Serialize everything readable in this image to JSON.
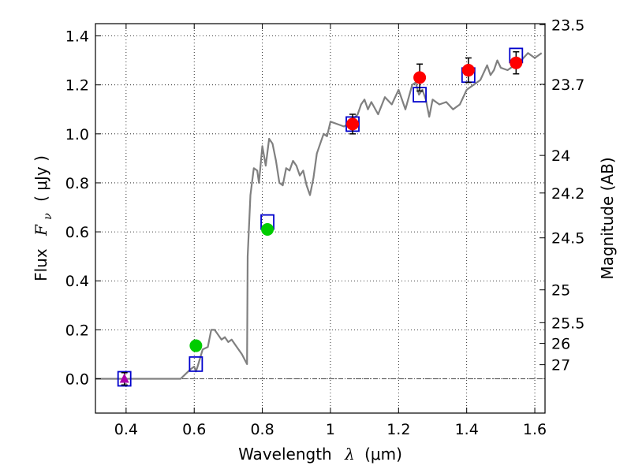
{
  "chart_data": {
    "type": "scatter",
    "xlabel_text": "Wavelength",
    "xlabel_symbol": "λ",
    "xlabel_unit": "(μm)",
    "ylabel_text": "Flux",
    "ylabel_symbol": "F",
    "ylabel_subscript": "ν",
    "ylabel_unit": "( μJy )",
    "y2label": "Magnitude (AB)",
    "xlim": [
      0.31,
      1.63
    ],
    "ylim": [
      -0.14,
      1.45
    ],
    "grid": true,
    "xticks": [
      0.4,
      0.6,
      0.8,
      1.0,
      1.2,
      1.4,
      1.6
    ],
    "xtick_labels": [
      "0.4",
      "0.6",
      "0.8",
      "1",
      "1.2",
      "1.4",
      "1.6"
    ],
    "yticks": [
      0.0,
      0.2,
      0.4,
      0.6,
      0.8,
      1.0,
      1.2,
      1.4
    ],
    "ytick_labels": [
      "0.0",
      "0.2",
      "0.4",
      "0.6",
      "0.8",
      "1.0",
      "1.2",
      "1.4"
    ],
    "mag_ticks": [
      23.5,
      23.7,
      24,
      24.2,
      24.5,
      25,
      25.5,
      26,
      27
    ],
    "mag_tick_labels": [
      "23.5",
      "23.7",
      "24",
      "24.2",
      "24.5",
      "25",
      "25.5",
      "26",
      "27"
    ],
    "series": [
      {
        "kind": "line",
        "color": "#808080",
        "x": [
          0.31,
          0.56,
          0.575,
          0.59,
          0.6,
          0.605,
          0.61,
          0.625,
          0.64,
          0.65,
          0.66,
          0.67,
          0.68,
          0.69,
          0.7,
          0.71,
          0.72,
          0.73,
          0.74,
          0.755,
          0.757,
          0.765,
          0.775,
          0.785,
          0.79,
          0.8,
          0.81,
          0.82,
          0.83,
          0.84,
          0.85,
          0.86,
          0.87,
          0.88,
          0.89,
          0.9,
          0.91,
          0.92,
          0.93,
          0.94,
          0.95,
          0.96,
          0.97,
          0.98,
          0.99,
          1.0,
          1.02,
          1.04,
          1.06,
          1.08,
          1.09,
          1.1,
          1.11,
          1.12,
          1.14,
          1.16,
          1.18,
          1.2,
          1.22,
          1.24,
          1.25,
          1.26,
          1.27,
          1.28,
          1.29,
          1.3,
          1.32,
          1.34,
          1.36,
          1.38,
          1.4,
          1.42,
          1.44,
          1.46,
          1.47,
          1.48,
          1.49,
          1.5,
          1.52,
          1.54,
          1.56,
          1.58,
          1.6,
          1.62
        ],
        "y": [
          0.0,
          0.0,
          0.02,
          0.04,
          0.05,
          0.03,
          0.05,
          0.12,
          0.13,
          0.2,
          0.2,
          0.18,
          0.16,
          0.17,
          0.15,
          0.16,
          0.14,
          0.12,
          0.1,
          0.06,
          0.5,
          0.75,
          0.86,
          0.85,
          0.8,
          0.95,
          0.87,
          0.98,
          0.96,
          0.89,
          0.8,
          0.79,
          0.86,
          0.85,
          0.89,
          0.87,
          0.83,
          0.85,
          0.79,
          0.75,
          0.82,
          0.92,
          0.96,
          1.0,
          0.99,
          1.05,
          1.04,
          1.03,
          1.05,
          1.08,
          1.12,
          1.14,
          1.1,
          1.13,
          1.08,
          1.15,
          1.12,
          1.18,
          1.1,
          1.2,
          1.21,
          1.16,
          1.18,
          1.14,
          1.07,
          1.14,
          1.12,
          1.13,
          1.1,
          1.12,
          1.18,
          1.2,
          1.22,
          1.28,
          1.24,
          1.26,
          1.3,
          1.27,
          1.26,
          1.28,
          1.3,
          1.33,
          1.31,
          1.33
        ]
      },
      {
        "kind": "squares",
        "color": "#0000cc",
        "x": [
          0.395,
          0.605,
          0.815,
          1.065,
          1.262,
          1.405,
          1.545
        ],
        "y": [
          0.0,
          0.06,
          0.64,
          1.04,
          1.16,
          1.24,
          1.32
        ]
      },
      {
        "kind": "triangle",
        "color": "#aa00aa",
        "x": [
          0.395
        ],
        "y": [
          0.0
        ],
        "err": [
          0.025
        ]
      },
      {
        "kind": "points",
        "color": "#00cc00",
        "x": [
          0.605,
          0.815
        ],
        "y": [
          0.135,
          0.61
        ],
        "err": [
          0.02,
          0.02
        ]
      },
      {
        "kind": "points",
        "color": "#ff0000",
        "x": [
          1.065,
          1.262,
          1.405,
          1.545
        ],
        "y": [
          1.04,
          1.23,
          1.26,
          1.29
        ],
        "err": [
          0.04,
          0.055,
          0.05,
          0.045
        ]
      }
    ]
  }
}
